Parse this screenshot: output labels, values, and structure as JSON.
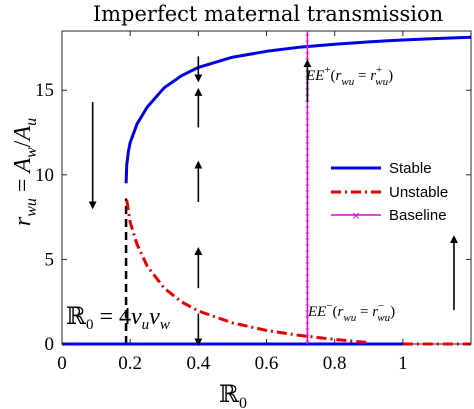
{
  "chart_data": {
    "type": "line",
    "title": "Imperfect maternal transmission",
    "xlabel": "ℝ0",
    "ylabel": "r_wu = A_w/A_u",
    "xlim": [
      0,
      1.2
    ],
    "ylim": [
      0,
      18.5
    ],
    "xticks": [
      0,
      0.2,
      0.4,
      0.6,
      0.8,
      1
    ],
    "xtick_labels": [
      "0",
      "0.2",
      "0.4",
      "0.6",
      "0.8",
      "1"
    ],
    "yticks": [
      0,
      5,
      10,
      15
    ],
    "ytick_labels": [
      "0",
      "5",
      "10",
      "15"
    ],
    "grid": false,
    "legend_position": "right",
    "series": [
      {
        "name": "Stable",
        "style": "solid",
        "color": "#0000e6",
        "segments": [
          {
            "x": [
              0.188,
              0.19,
              0.195,
              0.2,
              0.22,
              0.25,
              0.3,
              0.35,
              0.4,
              0.5,
              0.6,
              0.7,
              0.8,
              0.9,
              1.0,
              1.1,
              1.2
            ],
            "y": [
              9.5,
              10.6,
              11.4,
              11.9,
              13.0,
              14.0,
              15.15,
              15.85,
              16.35,
              16.95,
              17.3,
              17.55,
              17.72,
              17.86,
              17.97,
              18.06,
              18.13
            ]
          },
          {
            "x": [
              0,
              1.0
            ],
            "y": [
              0,
              0
            ]
          }
        ]
      },
      {
        "name": "Unstable",
        "style": "dashdot",
        "color": "#e60000",
        "segments": [
          {
            "x": [
              0.19,
              0.2,
              0.22,
              0.25,
              0.3,
              0.35,
              0.4,
              0.5,
              0.6,
              0.7,
              0.8,
              0.9
            ],
            "y": [
              8.5,
              7.2,
              5.9,
              4.6,
              3.3,
              2.5,
              1.95,
              1.25,
              0.8,
              0.5,
              0.27,
              0.08
            ]
          },
          {
            "x": [
              1.0,
              1.2
            ],
            "y": [
              0,
              0
            ]
          }
        ]
      },
      {
        "name": "Baseline",
        "style": "solid-marker",
        "color": "#e600e6",
        "x_const": 0.72
      }
    ],
    "threshold_line": {
      "x": 0.188,
      "y_range": [
        0,
        8.6
      ],
      "style": "dashed",
      "color": "#000000"
    },
    "annotations": {
      "ee_plus": "EE⁺(r_wu = r⁺_wu)",
      "ee_minus": "EE⁻(r_wu = r⁻_wu)",
      "r0_formula": "ℝ0 = 4v_u v_w"
    },
    "arrows": [
      {
        "x": 0.09,
        "y_from": 14.3,
        "y_to": 8.2,
        "direction": "down"
      },
      {
        "x": 0.4,
        "y_from": 17.0,
        "y_to": 15.7,
        "direction": "down"
      },
      {
        "x": 0.4,
        "y_from": 12.8,
        "y_to": 14.9,
        "direction": "up"
      },
      {
        "x": 0.4,
        "y_from": 8.4,
        "y_to": 10.6,
        "direction": "up"
      },
      {
        "x": 0.4,
        "y_from": 3.3,
        "y_to": 5.5,
        "direction": "up"
      },
      {
        "x": 0.4,
        "y_from": 1.8,
        "y_to": 0.1,
        "direction": "down"
      },
      {
        "x": 0.72,
        "y_from": 14.3,
        "y_to": 16.6,
        "direction": "up"
      },
      {
        "x": 1.15,
        "y_from": 2.0,
        "y_to": 6.2,
        "direction": "up"
      }
    ]
  }
}
